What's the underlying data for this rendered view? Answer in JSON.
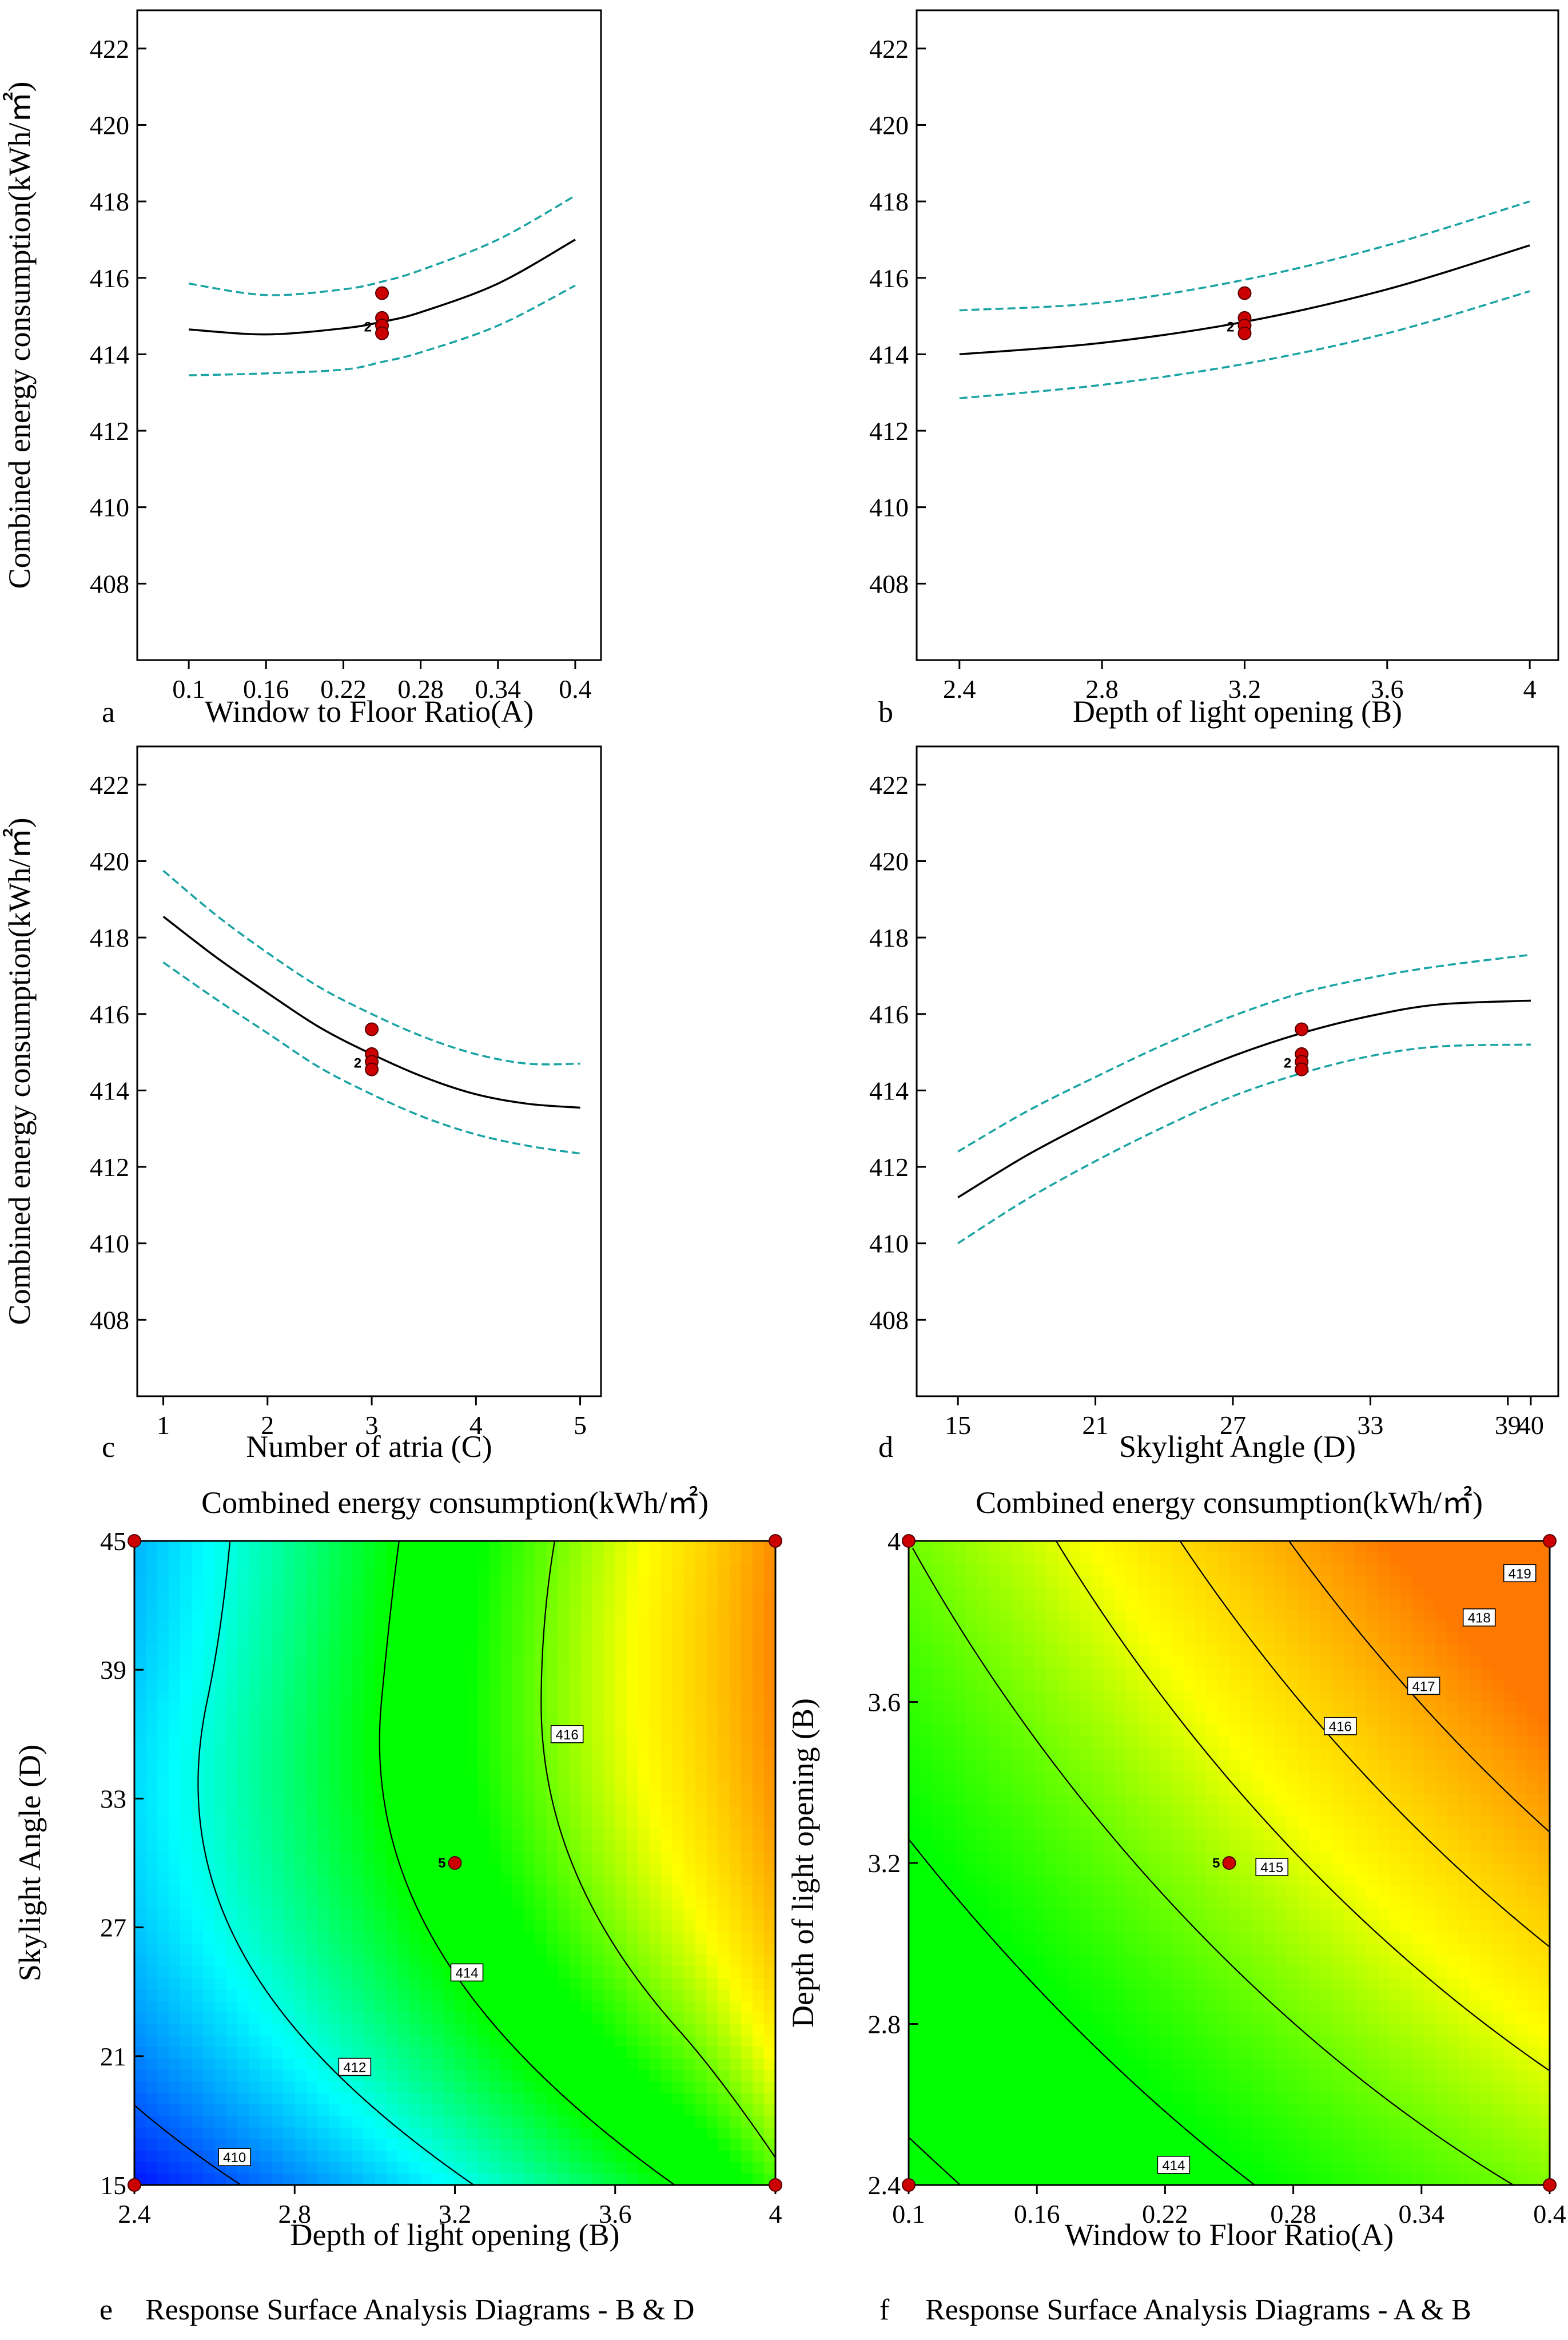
{
  "colors": {
    "frame": "#000000",
    "fit_line": "#000000",
    "ci_line": "#1aa3a3",
    "design_point": "#cc0000",
    "surface_low": "#0000ff",
    "surface_mid": "#00ff00",
    "surface_high": "#ff8000"
  },
  "chart_data": [
    {
      "id": "a",
      "type": "line",
      "panel_letter": "a",
      "title": "",
      "xlabel": "Window to Floor Ratio(A)",
      "ylabel": "Combined energy consumption(kWh/㎡)",
      "xlim": [
        0.06,
        0.42
      ],
      "ylim": [
        406,
        423
      ],
      "xticks": [
        0.1,
        0.16,
        0.22,
        0.28,
        0.34,
        0.4
      ],
      "xtick_labels": [
        "0.1",
        "0.16",
        "0.22",
        "0.28",
        "0.34",
        "0.4"
      ],
      "yticks": [
        408,
        410,
        412,
        414,
        416,
        418,
        420,
        422
      ],
      "ytick_labels": [
        "408",
        "410",
        "412",
        "414",
        "416",
        "418",
        "420",
        "422"
      ],
      "series": [
        {
          "name": "fit",
          "style": "solid",
          "x": [
            0.1,
            0.16,
            0.22,
            0.25,
            0.28,
            0.34,
            0.4
          ],
          "y": [
            414.65,
            414.52,
            414.68,
            414.85,
            415.1,
            415.85,
            417.0
          ]
        },
        {
          "name": "upper CI",
          "style": "dashed",
          "x": [
            0.1,
            0.16,
            0.22,
            0.25,
            0.28,
            0.34,
            0.4
          ],
          "y": [
            415.85,
            415.55,
            415.7,
            415.9,
            416.2,
            417.0,
            418.15
          ]
        },
        {
          "name": "lower CI",
          "style": "dashed",
          "x": [
            0.1,
            0.16,
            0.22,
            0.25,
            0.28,
            0.34,
            0.4
          ],
          "y": [
            413.45,
            413.5,
            413.6,
            413.8,
            414.05,
            414.75,
            415.8
          ]
        }
      ],
      "points": [
        {
          "x": 0.25,
          "y": 415.6
        },
        {
          "x": 0.25,
          "y": 414.95
        },
        {
          "x": 0.25,
          "y": 414.75
        },
        {
          "x": 0.25,
          "y": 414.55
        }
      ],
      "point_count_label": "2"
    },
    {
      "id": "b",
      "type": "line",
      "panel_letter": "b",
      "title": "",
      "xlabel": "Depth of light opening (B)",
      "ylabel": "",
      "xlim": [
        2.28,
        4.08
      ],
      "ylim": [
        406,
        423
      ],
      "xticks": [
        2.4,
        2.8,
        3.2,
        3.6,
        4.0
      ],
      "xtick_labels": [
        "2.4",
        "2.8",
        "3.2",
        "3.6",
        "4"
      ],
      "yticks": [
        408,
        410,
        412,
        414,
        416,
        418,
        420,
        422
      ],
      "ytick_labels": [
        "408",
        "410",
        "412",
        "414",
        "416",
        "418",
        "420",
        "422"
      ],
      "series": [
        {
          "name": "fit",
          "style": "solid",
          "x": [
            2.4,
            2.8,
            3.2,
            3.6,
            4.0
          ],
          "y": [
            414.0,
            414.3,
            414.85,
            415.7,
            416.85
          ]
        },
        {
          "name": "upper CI",
          "style": "dashed",
          "x": [
            2.4,
            2.8,
            3.2,
            3.6,
            4.0
          ],
          "y": [
            415.15,
            415.35,
            415.95,
            416.85,
            418.0
          ]
        },
        {
          "name": "lower CI",
          "style": "dashed",
          "x": [
            2.4,
            2.8,
            3.2,
            3.6,
            4.0
          ],
          "y": [
            412.85,
            413.2,
            413.75,
            414.55,
            415.65
          ]
        }
      ],
      "points": [
        {
          "x": 3.2,
          "y": 415.6
        },
        {
          "x": 3.2,
          "y": 414.95
        },
        {
          "x": 3.2,
          "y": 414.75
        },
        {
          "x": 3.2,
          "y": 414.55
        }
      ],
      "point_count_label": "2"
    },
    {
      "id": "c",
      "type": "line",
      "panel_letter": "c",
      "title": "",
      "xlabel": "Number of atria (C)",
      "ylabel": "Combined energy consumption(kWh/㎡)",
      "xlim": [
        0.75,
        5.2
      ],
      "ylim": [
        406,
        423
      ],
      "xticks": [
        1,
        2,
        3,
        4,
        5
      ],
      "xtick_labels": [
        "1",
        "2",
        "3",
        "4",
        "5"
      ],
      "yticks": [
        408,
        410,
        412,
        414,
        416,
        418,
        420,
        422
      ],
      "ytick_labels": [
        "408",
        "410",
        "412",
        "414",
        "416",
        "418",
        "420",
        "422"
      ],
      "series": [
        {
          "name": "fit",
          "style": "solid",
          "x": [
            1,
            1.5,
            2,
            2.5,
            3,
            3.5,
            4,
            4.5,
            5
          ],
          "y": [
            418.55,
            417.5,
            416.55,
            415.65,
            414.95,
            414.35,
            413.9,
            413.65,
            413.55
          ]
        },
        {
          "name": "upper CI",
          "style": "dashed",
          "x": [
            1,
            1.5,
            2,
            2.5,
            3,
            3.5,
            4,
            4.5,
            5
          ],
          "y": [
            419.75,
            418.6,
            417.6,
            416.7,
            416.0,
            415.4,
            414.95,
            414.7,
            414.7
          ]
        },
        {
          "name": "lower CI",
          "style": "dashed",
          "x": [
            1,
            1.5,
            2,
            2.5,
            3,
            3.5,
            4,
            4.5,
            5
          ],
          "y": [
            417.35,
            416.4,
            415.5,
            414.6,
            413.9,
            413.3,
            412.85,
            412.55,
            412.35
          ]
        }
      ],
      "points": [
        {
          "x": 3,
          "y": 415.6
        },
        {
          "x": 3,
          "y": 414.95
        },
        {
          "x": 3,
          "y": 414.75
        },
        {
          "x": 3,
          "y": 414.55
        }
      ],
      "point_count_label": "2"
    },
    {
      "id": "d",
      "type": "line",
      "panel_letter": "d",
      "title": "",
      "xlabel": "Skylight Angle (D)",
      "ylabel": "",
      "xlim": [
        13.2,
        41.2
      ],
      "ylim": [
        406,
        423
      ],
      "xticks": [
        15,
        21,
        27,
        33,
        39
      ],
      "xtick_labels": [
        "15",
        "21",
        "27",
        "33",
        "39"
      ],
      "extra_tick": {
        "x": 40,
        "label": "40"
      },
      "series": [
        {
          "name": "fit",
          "style": "solid",
          "x": [
            15,
            18,
            21,
            24,
            27,
            30,
            33,
            36,
            40
          ],
          "y": [
            411.2,
            412.3,
            413.25,
            414.15,
            414.9,
            415.5,
            415.95,
            416.25,
            416.35
          ]
        },
        {
          "name": "upper CI",
          "style": "dashed",
          "x": [
            15,
            18,
            21,
            24,
            27,
            30,
            33,
            36,
            40
          ],
          "y": [
            412.4,
            413.45,
            414.35,
            415.2,
            415.95,
            416.55,
            416.95,
            417.25,
            417.55
          ]
        },
        {
          "name": "lower CI",
          "style": "dashed",
          "x": [
            15,
            18,
            21,
            24,
            27,
            30,
            33,
            36,
            40
          ],
          "y": [
            410.0,
            411.15,
            412.15,
            413.05,
            413.85,
            414.45,
            414.9,
            415.15,
            415.2
          ]
        }
      ],
      "yticks": [
        408,
        410,
        412,
        414,
        416,
        418,
        420,
        422
      ],
      "ytick_labels": [
        "408",
        "410",
        "412",
        "414",
        "416",
        "418",
        "420",
        "422"
      ],
      "points": [
        {
          "x": 30,
          "y": 415.6
        },
        {
          "x": 30,
          "y": 414.95
        },
        {
          "x": 30,
          "y": 414.75
        },
        {
          "x": 30,
          "y": 414.55
        }
      ],
      "point_count_label": "2"
    },
    {
      "id": "e",
      "type": "heatmap",
      "panel_letter": "e",
      "title": "Combined energy consumption(kWh/㎡)",
      "caption": "Response Surface Analysis Diagrams - B & D",
      "xlabel": "Depth of light opening (B)",
      "ylabel": "Skylight Angle (D)",
      "xlim": [
        2.4,
        4.0
      ],
      "ylim": [
        15,
        45
      ],
      "xticks": [
        2.4,
        2.8,
        3.2,
        3.6,
        4.0
      ],
      "xtick_labels": [
        "2.4",
        "2.8",
        "3.2",
        "3.6",
        "4"
      ],
      "yticks": [
        15,
        21,
        27,
        33,
        39,
        45
      ],
      "ytick_labels": [
        "15",
        "21",
        "27",
        "33",
        "39",
        "45"
      ],
      "color_range": [
        409,
        420
      ],
      "contour_levels": [
        410,
        412,
        414,
        416
      ],
      "contour_label_positions": [
        {
          "level": "410",
          "x": 2.65,
          "y": 16.3
        },
        {
          "level": "412",
          "x": 2.95,
          "y": 20.5
        },
        {
          "level": "414",
          "x": 3.23,
          "y": 24.9
        },
        {
          "level": "416",
          "x": 3.48,
          "y": 36.0
        }
      ],
      "center_point": {
        "x": 3.2,
        "y": 30,
        "label": "5"
      },
      "corner_points": [
        {
          "x": 2.4,
          "y": 15
        },
        {
          "x": 4.0,
          "y": 15
        },
        {
          "x": 2.4,
          "y": 45
        },
        {
          "x": 4.0,
          "y": 45
        }
      ]
    },
    {
      "id": "f",
      "type": "heatmap",
      "panel_letter": "f",
      "title": "Combined energy consumption(kWh/㎡)",
      "caption": "Response Surface Analysis Diagrams - A & B",
      "xlabel": "Window to Floor Ratio(A)",
      "ylabel": "Depth of light opening (B)",
      "xlim": [
        0.1,
        0.4
      ],
      "ylim": [
        2.4,
        4.0
      ],
      "xticks": [
        0.1,
        0.16,
        0.22,
        0.28,
        0.34,
        0.4
      ],
      "xtick_labels": [
        "0.1",
        "0.16",
        "0.22",
        "0.28",
        "0.34",
        "0.4"
      ],
      "yticks": [
        2.4,
        2.8,
        3.2,
        3.6,
        4.0
      ],
      "ytick_labels": [
        "2.4",
        "2.8",
        "3.2",
        "3.6",
        "4"
      ],
      "color_range": [
        409,
        420
      ],
      "contour_levels": [
        414,
        415,
        416,
        417,
        418,
        419
      ],
      "contour_label_positions": [
        {
          "level": "414",
          "x": 0.224,
          "y": 2.45
        },
        {
          "level": "415",
          "x": 0.27,
          "y": 3.19
        },
        {
          "level": "416",
          "x": 0.302,
          "y": 3.54
        },
        {
          "level": "417",
          "x": 0.341,
          "y": 3.64
        },
        {
          "level": "418",
          "x": 0.367,
          "y": 3.81
        },
        {
          "level": "419",
          "x": 0.386,
          "y": 3.92
        }
      ],
      "center_point": {
        "x": 0.25,
        "y": 3.2,
        "label": "5"
      },
      "corner_points": [
        {
          "x": 0.1,
          "y": 2.4
        },
        {
          "x": 0.4,
          "y": 2.4
        },
        {
          "x": 0.1,
          "y": 4.0
        },
        {
          "x": 0.4,
          "y": 4.0
        }
      ]
    }
  ]
}
